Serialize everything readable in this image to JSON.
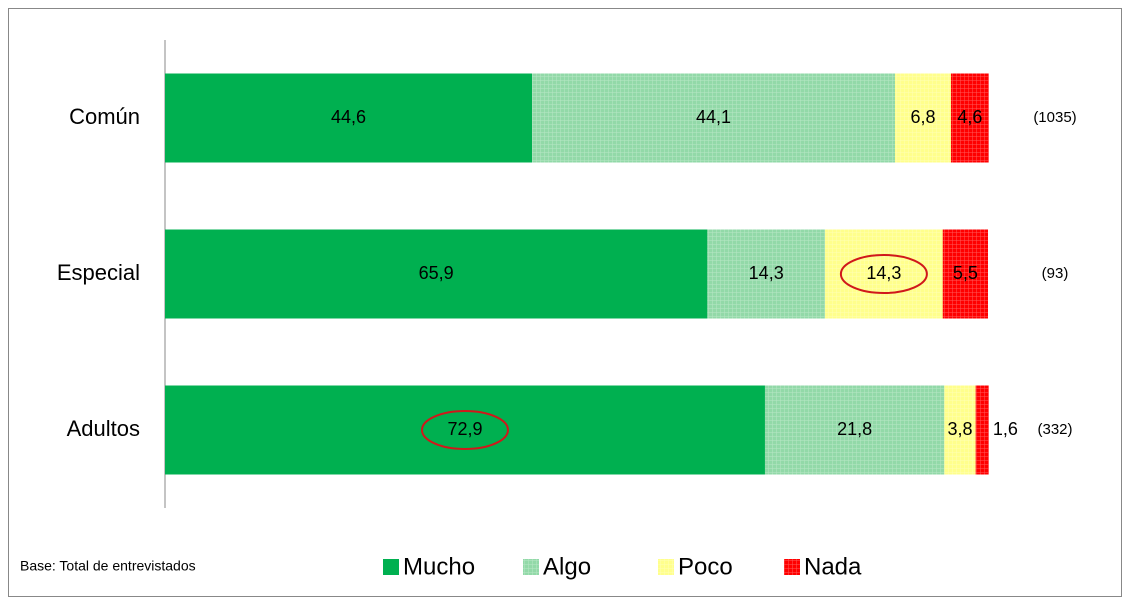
{
  "chart_data": {
    "type": "stacked-bar-horizontal",
    "categories": [
      "Común",
      "Especial",
      "Adultos"
    ],
    "series": [
      {
        "name": "Mucho",
        "color": "#00b050",
        "values": [
          44.6,
          65.9,
          72.9
        ],
        "value_labels": [
          "44,6",
          "65,9",
          "72,9"
        ]
      },
      {
        "name": "Algo",
        "color": "#92d9a8",
        "values": [
          44.1,
          14.3,
          21.8
        ],
        "value_labels": [
          "44,1",
          "14,3",
          "21,8"
        ]
      },
      {
        "name": "Poco",
        "color": "#ffff8c",
        "values": [
          6.8,
          14.3,
          3.8
        ],
        "value_labels": [
          "6,8",
          "14,3",
          "3,8"
        ]
      },
      {
        "name": "Nada",
        "color": "#ff0000",
        "values": [
          4.6,
          5.5,
          1.6
        ],
        "value_labels": [
          "4,6",
          "5,5",
          "1,6"
        ]
      }
    ],
    "base_labels": [
      "(1035)",
      "(93)",
      "(332)"
    ],
    "note": "Base: Total de entrevistados",
    "xlim": [
      0,
      100
    ]
  }
}
